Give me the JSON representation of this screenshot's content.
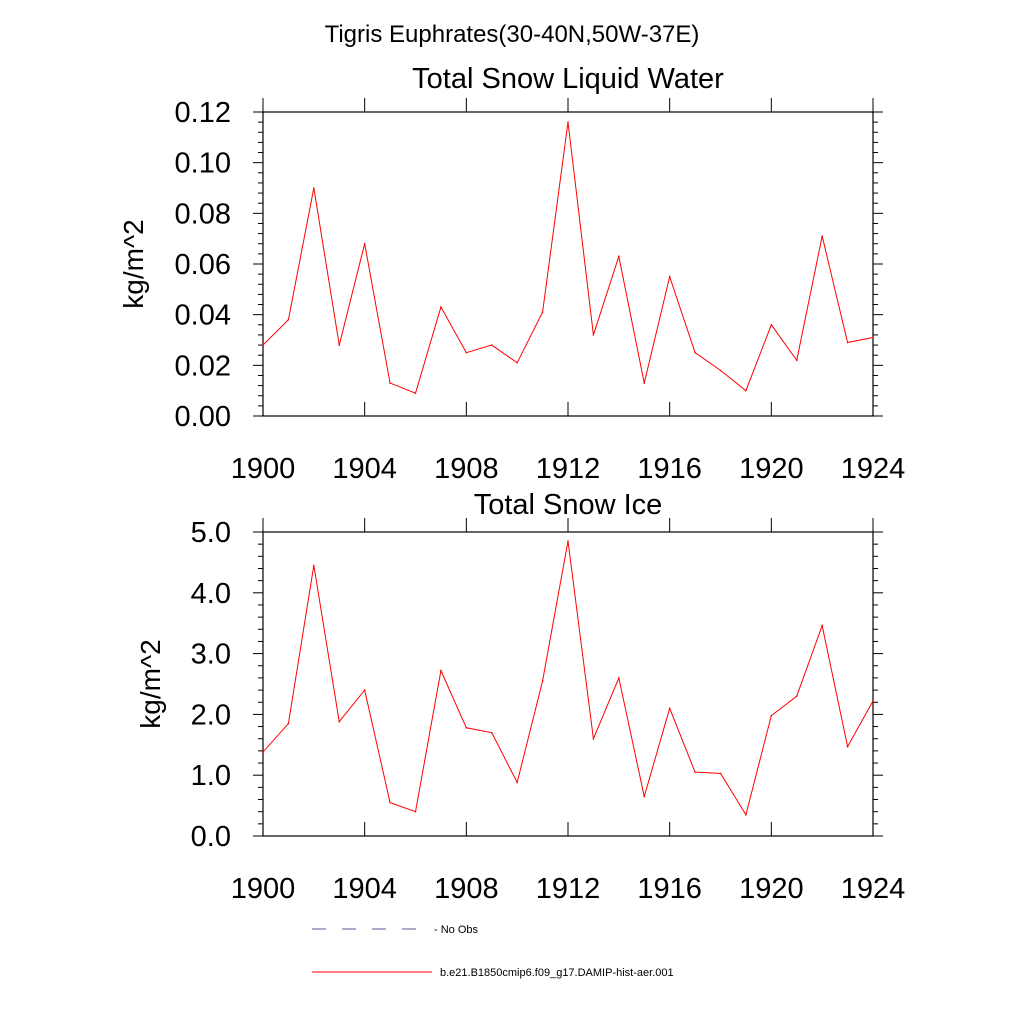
{
  "figure_title": "Tigris Euphrates(30-40N,50W-37E)",
  "legend": [
    {
      "label": "- No Obs",
      "color": "#5a5a96",
      "dash": "dashed"
    },
    {
      "label": "b.e21.B1850cmip6.f09_g17.DAMIP-hist-aer.001",
      "color": "#ff0000",
      "dash": "solid"
    }
  ],
  "chart_data": [
    {
      "type": "line",
      "title": "Total Snow Liquid Water",
      "xlabel": "",
      "ylabel": "kg/m^2",
      "xlim": [
        1900,
        1924
      ],
      "ylim": [
        0.0,
        0.12
      ],
      "xticks": [
        "1900",
        "1904",
        "1908",
        "1912",
        "1916",
        "1920",
        "1924"
      ],
      "yticks": [
        "0.00",
        "0.02",
        "0.04",
        "0.06",
        "0.08",
        "0.10",
        "0.12"
      ],
      "grid": false,
      "x": [
        1900,
        1901,
        1902,
        1903,
        1904,
        1905,
        1906,
        1907,
        1908,
        1909,
        1910,
        1911,
        1912,
        1913,
        1914,
        1915,
        1916,
        1917,
        1918,
        1919,
        1920,
        1921,
        1922,
        1923,
        1924
      ],
      "series": [
        {
          "name": "b.e21.B1850cmip6.f09_g17.DAMIP-hist-aer.001",
          "color": "#ff0000",
          "values": [
            0.028,
            0.038,
            0.09,
            0.028,
            0.068,
            0.013,
            0.009,
            0.043,
            0.025,
            0.028,
            0.021,
            0.041,
            0.116,
            0.032,
            0.063,
            0.013,
            0.055,
            0.025,
            0.018,
            0.01,
            0.036,
            0.022,
            0.071,
            0.029,
            0.031
          ]
        }
      ]
    },
    {
      "type": "line",
      "title": "Total Snow Ice",
      "xlabel": "",
      "ylabel": "kg/m^2",
      "xlim": [
        1900,
        1924
      ],
      "ylim": [
        0.0,
        5.0
      ],
      "xticks": [
        "1900",
        "1904",
        "1908",
        "1912",
        "1916",
        "1920",
        "1924"
      ],
      "yticks": [
        "0.0",
        "1.0",
        "2.0",
        "3.0",
        "4.0",
        "5.0"
      ],
      "grid": false,
      "x": [
        1900,
        1901,
        1902,
        1903,
        1904,
        1905,
        1906,
        1907,
        1908,
        1909,
        1910,
        1911,
        1912,
        1913,
        1914,
        1915,
        1916,
        1917,
        1918,
        1919,
        1920,
        1921,
        1922,
        1923,
        1924
      ],
      "series": [
        {
          "name": "b.e21.B1850cmip6.f09_g17.DAMIP-hist-aer.001",
          "color": "#ff0000",
          "values": [
            1.38,
            1.85,
            4.45,
            1.88,
            2.4,
            0.55,
            0.4,
            2.72,
            1.78,
            1.7,
            0.88,
            2.55,
            4.85,
            1.6,
            2.6,
            0.65,
            2.1,
            1.05,
            1.03,
            0.35,
            1.98,
            2.3,
            3.46,
            1.47,
            2.22
          ]
        }
      ]
    }
  ]
}
